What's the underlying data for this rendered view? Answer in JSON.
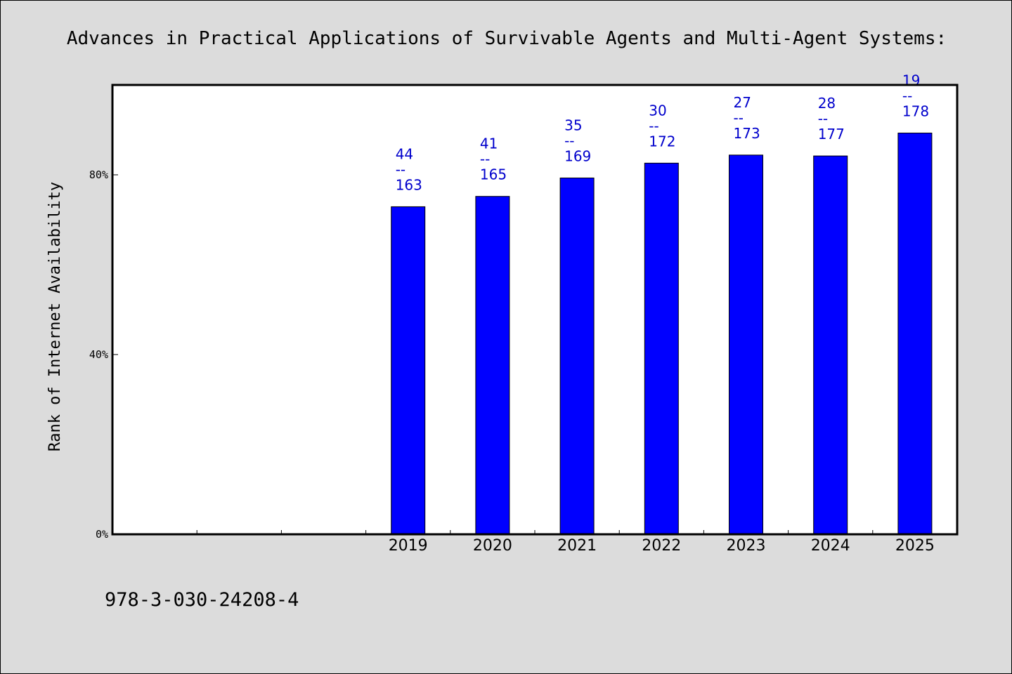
{
  "colors": {
    "bar": "#0000ff",
    "label": "#0000cc",
    "background": "#dcdcdc",
    "plot_background": "#ffffff"
  },
  "chart_data": {
    "type": "bar",
    "title": "Advances in Practical Applications of Survivable Agents and Multi-Agent Systems:",
    "xlabel": "",
    "ylabel": "Rank of Internet Availability",
    "x_slots": [
      "",
      "",
      "",
      "2019",
      "2020",
      "2021",
      "2022",
      "2023",
      "2024",
      "2025"
    ],
    "categories": [
      "2019",
      "2020",
      "2021",
      "2022",
      "2023",
      "2024",
      "2025"
    ],
    "values": [
      72.9,
      75.2,
      79.3,
      82.6,
      84.4,
      84.2,
      89.3
    ],
    "data_labels": [
      [
        "44",
        "--",
        "163"
      ],
      [
        "41",
        "--",
        "165"
      ],
      [
        "35",
        "--",
        "169"
      ],
      [
        "30",
        "--",
        "172"
      ],
      [
        "27",
        "--",
        "173"
      ],
      [
        "28",
        "--",
        "177"
      ],
      [
        "19",
        "--",
        "178"
      ]
    ],
    "yticks": [
      0,
      40,
      80
    ],
    "ytick_labels": [
      "0%",
      "40%",
      "80%"
    ],
    "ylim": [
      0,
      100
    ],
    "grid": false,
    "legend": "none",
    "footnote": "978-3-030-24208-4"
  }
}
